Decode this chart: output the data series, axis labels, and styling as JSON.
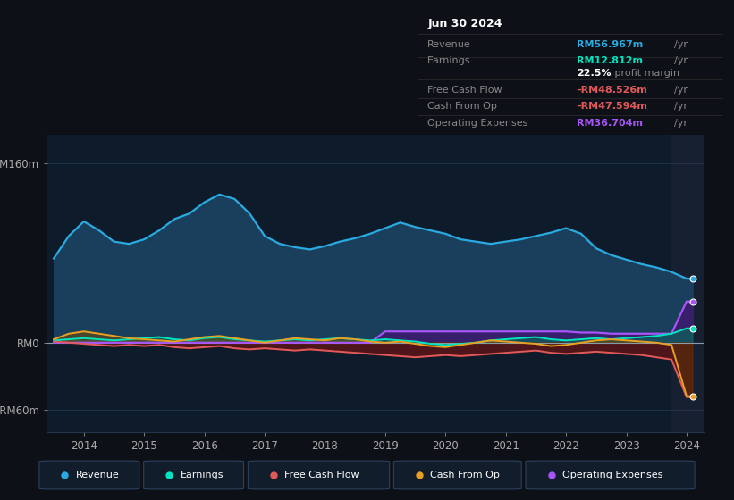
{
  "bg_color": "#0d1117",
  "plot_bg_color": "#0d1b2a",
  "grid_color": "#263d57",
  "years": [
    2013.5,
    2013.75,
    2014.0,
    2014.25,
    2014.5,
    2014.75,
    2015.0,
    2015.25,
    2015.5,
    2015.75,
    2016.0,
    2016.25,
    2016.5,
    2016.75,
    2017.0,
    2017.25,
    2017.5,
    2017.75,
    2018.0,
    2018.25,
    2018.5,
    2018.75,
    2019.0,
    2019.25,
    2019.5,
    2019.75,
    2020.0,
    2020.25,
    2020.5,
    2020.75,
    2021.0,
    2021.25,
    2021.5,
    2021.75,
    2022.0,
    2022.25,
    2022.5,
    2022.75,
    2023.0,
    2023.25,
    2023.5,
    2023.75,
    2024.0,
    2024.1
  ],
  "revenue": [
    75,
    95,
    108,
    100,
    90,
    88,
    92,
    100,
    110,
    115,
    125,
    132,
    128,
    115,
    95,
    88,
    85,
    83,
    86,
    90,
    93,
    97,
    102,
    107,
    103,
    100,
    97,
    92,
    90,
    88,
    90,
    92,
    95,
    98,
    102,
    97,
    84,
    78,
    74,
    70,
    67,
    63,
    57,
    57
  ],
  "earnings": [
    2,
    3,
    4,
    3,
    2,
    3,
    4,
    5,
    3,
    2,
    4,
    5,
    3,
    2,
    1,
    2,
    3,
    2,
    3,
    4,
    3,
    2,
    3,
    2,
    1,
    -1,
    -2,
    -1,
    0,
    2,
    3,
    4,
    5,
    3,
    2,
    3,
    4,
    3,
    4,
    5,
    6,
    8,
    12.8,
    12.8
  ],
  "free_cash_flow": [
    1,
    0,
    -1,
    -2,
    -3,
    -2,
    -3,
    -2,
    -4,
    -5,
    -4,
    -3,
    -5,
    -6,
    -5,
    -6,
    -7,
    -6,
    -7,
    -8,
    -9,
    -10,
    -11,
    -12,
    -13,
    -12,
    -11,
    -12,
    -11,
    -10,
    -9,
    -8,
    -7,
    -9,
    -10,
    -9,
    -8,
    -9,
    -10,
    -11,
    -13,
    -15,
    -48.5,
    -48.5
  ],
  "cash_from_op": [
    3,
    8,
    10,
    8,
    6,
    4,
    3,
    2,
    1,
    3,
    5,
    6,
    4,
    2,
    0,
    2,
    4,
    3,
    2,
    4,
    3,
    1,
    0,
    1,
    -1,
    -3,
    -4,
    -2,
    0,
    2,
    1,
    0,
    -1,
    -3,
    -2,
    0,
    2,
    3,
    2,
    1,
    0,
    -2,
    -47.6,
    -47.6
  ],
  "operating_expenses": [
    0,
    0,
    0,
    0,
    0,
    0,
    0,
    0,
    0,
    0,
    0,
    0,
    0,
    0,
    0,
    0,
    0,
    0,
    0,
    0,
    0,
    0,
    10,
    10,
    10,
    10,
    10,
    10,
    10,
    10,
    10,
    10,
    10,
    10,
    10,
    9,
    9,
    8,
    8,
    8,
    8,
    8,
    36.7,
    36.7
  ],
  "ylim": [
    -80,
    185
  ],
  "yticks": [
    -60,
    0,
    160
  ],
  "ytick_labels": [
    "-RM60m",
    "RM0",
    "RM160m"
  ],
  "xtick_years": [
    2014,
    2015,
    2016,
    2017,
    2018,
    2019,
    2020,
    2021,
    2022,
    2023,
    2024
  ],
  "xmin": 2013.4,
  "xmax": 2024.25,
  "highlight_x_start": 2023.75,
  "revenue_color": "#29abe2",
  "revenue_fill": "#1a3f5c",
  "earnings_color": "#00e5c0",
  "free_cash_flow_color": "#e05a5a",
  "fcf_fill_pos": "#4a9a4a",
  "fcf_fill_neg": "#7a1a1a",
  "cash_from_op_color": "#e8a020",
  "op_expenses_color": "#a855f7",
  "op_expenses_fill": "#3d1a6e",
  "info_box": {
    "date": "Jun 30 2024",
    "revenue_label": "Revenue",
    "revenue_value": "RM56.967m",
    "revenue_color": "#29abe2",
    "earnings_label": "Earnings",
    "earnings_value": "RM12.812m",
    "earnings_color": "#00e5c0",
    "margin_text": "22.5%",
    "margin_suffix": " profit margin",
    "fcf_label": "Free Cash Flow",
    "fcf_value": "-RM48.526m",
    "fcf_color": "#e05a5a",
    "cashop_label": "Cash From Op",
    "cashop_value": "-RM47.594m",
    "cashop_color": "#e05a5a",
    "opex_label": "Operating Expenses",
    "opex_value": "RM36.704m",
    "opex_color": "#a855f7"
  },
  "legend_items": [
    {
      "label": "Revenue",
      "color": "#29abe2"
    },
    {
      "label": "Earnings",
      "color": "#00e5c0"
    },
    {
      "label": "Free Cash Flow",
      "color": "#e05a5a"
    },
    {
      "label": "Cash From Op",
      "color": "#e8a020"
    },
    {
      "label": "Operating Expenses",
      "color": "#a855f7"
    }
  ]
}
